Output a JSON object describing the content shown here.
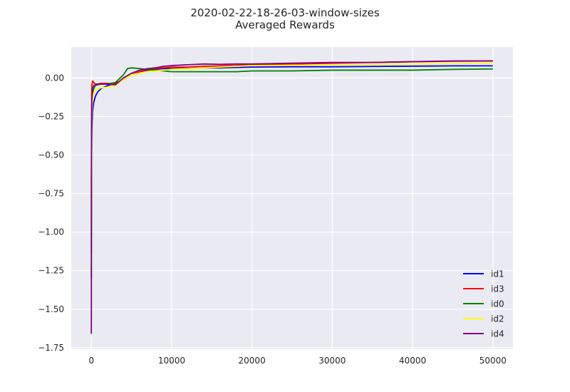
{
  "chart_data": {
    "type": "line",
    "title": "2020-02-22-18-26-03-window-sizes",
    "subtitle": "Averaged Rewards",
    "xlabel": "",
    "ylabel": "",
    "xlim": [
      -2500,
      52500
    ],
    "ylim": [
      -1.76,
      0.2
    ],
    "x_ticks": [
      0,
      10000,
      20000,
      30000,
      40000,
      50000
    ],
    "x_tick_labels": [
      "0",
      "10000",
      "20000",
      "30000",
      "40000",
      "50000"
    ],
    "y_ticks": [
      0.0,
      -0.25,
      -0.5,
      -0.75,
      -1.0,
      -1.25,
      -1.5,
      -1.75
    ],
    "y_tick_labels": [
      "0.00",
      "−0.25",
      "−0.50",
      "−0.75",
      "−1.00",
      "−1.25",
      "−1.50",
      "−1.75"
    ],
    "grid": true,
    "legend_position": "bottom-right",
    "series": [
      {
        "name": "id1",
        "color": "#0000ff",
        "x": [
          0,
          20,
          60,
          150,
          300,
          500,
          800,
          1200,
          2000,
          3000,
          4000,
          5000,
          6000,
          7000,
          8000,
          9000,
          10000,
          12000,
          14000,
          16000,
          18000,
          20000,
          25000,
          30000,
          35000,
          40000,
          45000,
          50000
        ],
        "y": [
          -1.14,
          -0.6,
          -0.35,
          -0.22,
          -0.16,
          -0.12,
          -0.09,
          -0.07,
          -0.05,
          -0.035,
          -0.01,
          0.02,
          0.04,
          0.05,
          0.055,
          0.06,
          0.06,
          0.062,
          0.065,
          0.065,
          0.068,
          0.07,
          0.072,
          0.072,
          0.074,
          0.076,
          0.078,
          0.078
        ]
      },
      {
        "name": "id3",
        "color": "#ff0000",
        "x": [
          0,
          20,
          60,
          150,
          300,
          500,
          800,
          1200,
          2000,
          3000,
          4000,
          5000,
          6000,
          7000,
          8000,
          9000,
          10000,
          12000,
          14000,
          16000,
          18000,
          20000,
          25000,
          30000,
          35000,
          40000,
          45000,
          50000
        ],
        "y": [
          -0.9,
          -0.3,
          -0.05,
          -0.02,
          -0.03,
          -0.04,
          -0.04,
          -0.035,
          -0.035,
          -0.04,
          -0.005,
          0.02,
          0.04,
          0.055,
          0.06,
          0.065,
          0.07,
          0.07,
          0.075,
          0.078,
          0.08,
          0.085,
          0.09,
          0.095,
          0.1,
          0.105,
          0.108,
          0.11
        ]
      },
      {
        "name": "id0",
        "color": "#008000",
        "x": [
          0,
          20,
          60,
          150,
          300,
          500,
          800,
          1200,
          2000,
          3000,
          4000,
          4500,
          5000,
          6000,
          7000,
          8000,
          9000,
          10000,
          12000,
          14000,
          16000,
          18000,
          20000,
          25000,
          30000,
          35000,
          40000,
          45000,
          50000
        ],
        "y": [
          -1.3,
          -0.5,
          -0.2,
          -0.1,
          -0.07,
          -0.05,
          -0.045,
          -0.04,
          -0.04,
          -0.03,
          0.02,
          0.06,
          0.065,
          0.06,
          0.055,
          0.05,
          0.045,
          0.04,
          0.04,
          0.04,
          0.04,
          0.04,
          0.045,
          0.045,
          0.05,
          0.05,
          0.05,
          0.055,
          0.058
        ]
      },
      {
        "name": "id2",
        "color": "#ffff00",
        "x": [
          0,
          20,
          60,
          150,
          300,
          500,
          800,
          1200,
          2000,
          3000,
          4000,
          5000,
          6000,
          7000,
          8000,
          9000,
          10000,
          12000,
          14000,
          16000,
          18000,
          20000,
          25000,
          30000,
          35000,
          40000,
          45000,
          50000
        ],
        "y": [
          -1.2,
          -0.5,
          -0.25,
          -0.15,
          -0.1,
          -0.08,
          -0.07,
          -0.065,
          -0.06,
          -0.05,
          -0.01,
          0.02,
          0.03,
          0.04,
          0.045,
          0.05,
          0.055,
          0.06,
          0.065,
          0.07,
          0.075,
          0.08,
          0.082,
          0.085,
          0.088,
          0.09,
          0.092,
          0.094
        ]
      },
      {
        "name": "id4",
        "color": "#800080",
        "x": [
          0,
          20,
          60,
          150,
          300,
          500,
          800,
          1200,
          2000,
          3000,
          4000,
          5000,
          6000,
          7000,
          8000,
          9000,
          10000,
          12000,
          14000,
          16000,
          18000,
          20000,
          25000,
          30000,
          35000,
          40000,
          45000,
          50000
        ],
        "y": [
          -1.66,
          -0.5,
          -0.15,
          -0.07,
          -0.05,
          -0.045,
          -0.04,
          -0.04,
          -0.04,
          -0.045,
          0.0,
          0.03,
          0.05,
          0.06,
          0.065,
          0.075,
          0.08,
          0.085,
          0.09,
          0.088,
          0.09,
          0.09,
          0.095,
          0.1,
          0.1,
          0.105,
          0.11,
          0.11
        ]
      }
    ]
  }
}
